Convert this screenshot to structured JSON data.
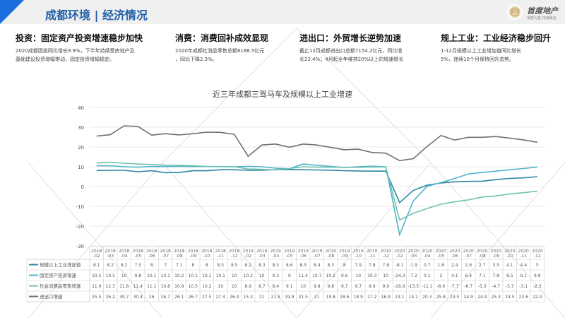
{
  "header": {
    "title": "成都环境 | 经济情况"
  },
  "logo": {
    "name": "首度地产",
    "mark": "SDP",
    "slogan": "睿智为基 持度致远"
  },
  "sections": [
    {
      "heading": "投资：固定资产投资增速稳步加快",
      "text1": "2020成都固投同比增长9.9%，下半年持续受房地产及",
      "text2": "基础建设投资增幅带动，固定投资增幅稳定。"
    },
    {
      "heading": "消费：消费回补成效显现",
      "text1": "2020年成都社消品零售总额8188.5亿元",
      "text2": "，同比下降2.3%。"
    },
    {
      "heading": "进出口：外贸增长逆势加速",
      "text1": "截止12月成都进出口总额7154.2亿元，同比增",
      "text2": "长22.4%；4月起全年维持20%以上的增速增长"
    },
    {
      "heading": "规上工业：工业经济稳步回升",
      "text1": "1-12月规模以上工业增加值同比增长",
      "text2": "5%，连续10个月保持回升态势。"
    }
  ],
  "chart_data": {
    "type": "line",
    "title": "近三年成都三驾马车及规模以上工业增速",
    "ylim": [
      -30,
      40
    ],
    "yticks": [
      40,
      30,
      20,
      10,
      0,
      -10,
      -20,
      -30
    ],
    "categories": [
      "2018-02",
      "2018-03",
      "2018-04",
      "2018-05",
      "2018-06",
      "2018-07",
      "2018-08",
      "2018-09",
      "2018-10",
      "2018-11",
      "2018-12",
      "2019-02",
      "2019-03",
      "2019-04",
      "2019-05",
      "2019-06",
      "2019-07",
      "2019-08",
      "2019-09",
      "2019-10",
      "2019-11",
      "2019-12",
      "2020-02",
      "2020-03",
      "2020-04",
      "2020-05",
      "2020-06",
      "2020-07",
      "2020-08",
      "2020-09",
      "2020-10",
      "2020-11",
      "2020-12"
    ],
    "series": [
      {
        "name": "规模以上工业增加值",
        "color": "#2c86a3",
        "values": [
          8.1,
          8.2,
          8.2,
          7.5,
          8,
          7,
          7.1,
          8,
          8,
          8.5,
          8.5,
          8.2,
          8.3,
          8.5,
          8.6,
          8.5,
          8.4,
          8.3,
          8,
          7.9,
          7.8,
          7.8,
          -8.1,
          -1.9,
          0.7,
          1.8,
          2.4,
          2.6,
          2.7,
          3.5,
          4.1,
          4.4,
          5
        ]
      },
      {
        "name": "固定资产投资增速",
        "color": "#4fb3cc",
        "values": [
          10.5,
          10.5,
          10,
          9.8,
          10.1,
          10.1,
          10.2,
          10.1,
          10.1,
          10.1,
          10,
          10.2,
          10,
          9.3,
          9,
          11.4,
          10.7,
          10.2,
          9.6,
          10,
          10.3,
          10,
          -24.3,
          -7.2,
          0.1,
          2,
          4.1,
          6.4,
          7.1,
          7.8,
          8.5,
          9.1,
          9.9
        ]
      },
      {
        "name": "社会消费品零售增速",
        "color": "#70c2b2",
        "values": [
          11.9,
          12.3,
          11.8,
          11.4,
          11.1,
          10.8,
          10.8,
          10.5,
          10.2,
          10,
          10,
          8.9,
          8.7,
          8.4,
          9.1,
          10,
          9.8,
          9.8,
          9.7,
          9.7,
          9.9,
          9.9,
          -16.9,
          -13.5,
          -11.1,
          -8.9,
          -7.7,
          -6.7,
          -5.3,
          -4.7,
          -3.7,
          -3.1,
          -2.3
        ]
      },
      {
        "name": "进出口增速",
        "color": "#707070",
        "values": [
          25.5,
          26.2,
          30.7,
          30.4,
          26,
          26.7,
          26.1,
          26.7,
          27.5,
          27.4,
          26.4,
          15.3,
          21,
          21.5,
          19.9,
          21.5,
          21,
          19.8,
          18.6,
          18.9,
          17.2,
          16.9,
          13.1,
          14.1,
          20.3,
          25.8,
          23.5,
          24.9,
          24.9,
          25.3,
          24.5,
          23.6,
          22.4
        ]
      }
    ],
    "legend": "bottom-table"
  }
}
